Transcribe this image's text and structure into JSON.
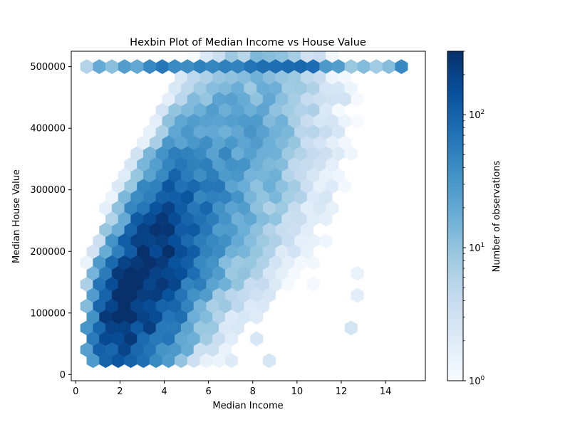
{
  "chart_data": {
    "type": "hexbin",
    "title": "Hexbin Plot of Median Income vs House Value",
    "xlabel": "Median Income",
    "ylabel": "Median House Value",
    "xlim": [
      -0.2,
      15.8
    ],
    "ylim": [
      -10000,
      525000
    ],
    "xticks": [
      0,
      2,
      4,
      6,
      8,
      10,
      12,
      14
    ],
    "yticks": [
      0,
      100000,
      200000,
      300000,
      400000,
      500000
    ],
    "colorbar": {
      "label": "Number of observations",
      "scale": "log",
      "range": [
        1,
        300
      ],
      "ticks": [
        {
          "value": 1,
          "label": "10",
          "exp": "0"
        },
        {
          "value": 10,
          "label": "10",
          "exp": "1"
        },
        {
          "value": 100,
          "label": "10",
          "exp": "2"
        }
      ],
      "colormap": "Blues"
    },
    "density_model": {
      "ridge": [
        [
          0.5,
          60000
        ],
        [
          2.0,
          110000
        ],
        [
          3.5,
          170000
        ],
        [
          5.0,
          230000
        ],
        [
          6.5,
          300000
        ],
        [
          8.0,
          360000
        ],
        [
          10.0,
          430000
        ]
      ],
      "peak_counts": 300,
      "cap_value": 500001
    },
    "grid": false,
    "legend": "none"
  }
}
